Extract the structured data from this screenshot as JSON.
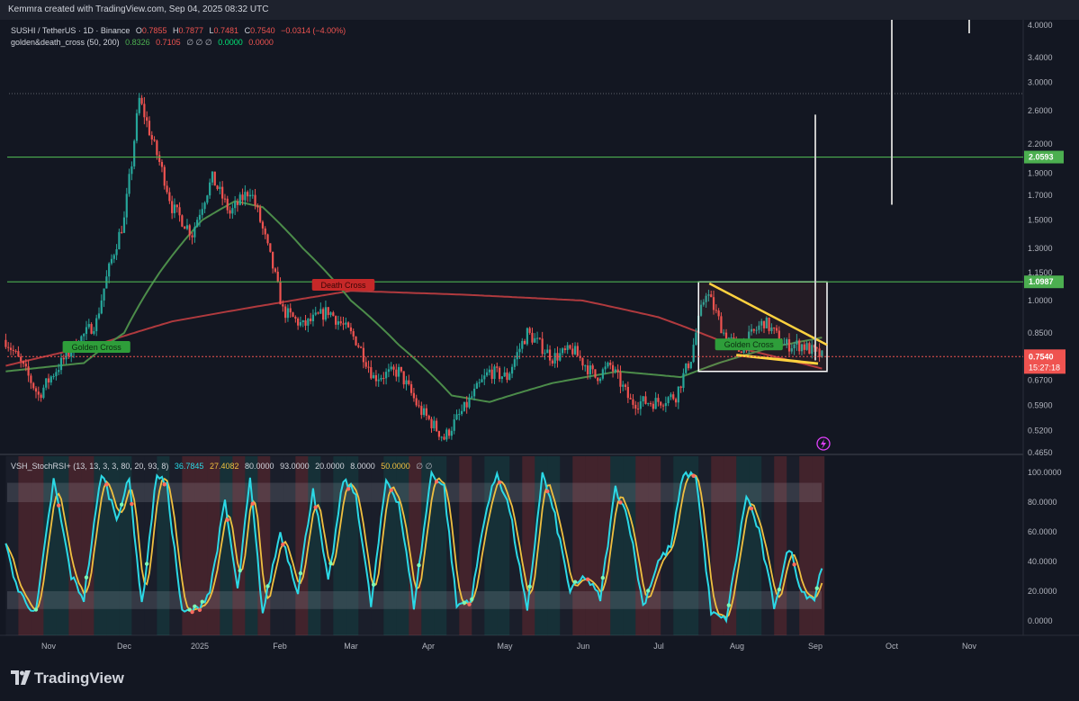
{
  "header": {
    "attribution": "Kemmra created with TradingView.com, Sep 04, 2025 08:32 UTC"
  },
  "legend": {
    "symbol": "SUSHI / TetherUS · 1D · Binance",
    "o_label": "O",
    "o_value": "0.7855",
    "h_label": "H",
    "h_value": "0.7877",
    "l_label": "L",
    "l_value": "0.7481",
    "c_label": "C",
    "c_value": "0.7540",
    "change": "−0.0314 (−4.00%)",
    "indicator_name": "golden&death_cross (50, 200)",
    "ind_v1": "0.8326",
    "ind_v2": "0.7105",
    "ind_nulls": "∅ ∅ ∅",
    "ind_v3": "0.0000",
    "ind_v4": "0.0000"
  },
  "rsi_legend": {
    "name": "VSH_StochRSI+ (13, 13, 3, 3, 80, 20, 93, 8)",
    "k": "36.7845",
    "d": "27.4082",
    "v1": "80.0000",
    "v2": "93.0000",
    "v3": "20.0000",
    "v4": "8.0000",
    "v5": "50.0000",
    "nulls": "∅ ∅"
  },
  "footer": {
    "brand": "TradingView"
  },
  "colors": {
    "bg": "#131722",
    "up": "#26a69a",
    "down": "#ef5350",
    "ma50": "#4c8c4a",
    "ma200": "#b03a3e",
    "hline": "#4caf50",
    "trend": "#ffd23f",
    "k_line": "#2bd9e6",
    "d_line": "#f0c040"
  },
  "chart_data": [
    {
      "type": "candlestick",
      "title": "SUSHI / TetherUS · 1D · Binance",
      "scale": "log",
      "ylim": [
        0.465,
        4.0
      ],
      "y_ticks": [
        "4.0000",
        "3.4000",
        "3.0000",
        "2.6000",
        "2.2000",
        "1.9000",
        "1.7000",
        "1.5000",
        "1.3000",
        "1.1500",
        "1.0000",
        "0.8500",
        "0.6700",
        "0.5900",
        "0.5200",
        "0.4650"
      ],
      "x_ticks": [
        "Nov",
        "Dec",
        "2025",
        "Feb",
        "Mar",
        "Apr",
        "May",
        "Jun",
        "Jul",
        "Aug",
        "Sep",
        "Oct",
        "Nov"
      ],
      "price_anchors": [
        [
          "Oct 15",
          0.82
        ],
        [
          "Oct 28",
          0.62
        ],
        [
          "Nov 10",
          0.78
        ],
        [
          "Nov 20",
          0.9
        ],
        [
          "Dec 1",
          1.5
        ],
        [
          "Dec 4",
          2.0
        ],
        [
          "Dec 7",
          2.75
        ],
        [
          "Dec 12",
          2.25
        ],
        [
          "Dec 20",
          1.6
        ],
        [
          "Dec 28",
          1.4
        ],
        [
          "Jan 5",
          1.85
        ],
        [
          "Jan 12",
          1.55
        ],
        [
          "Jan 20",
          1.75
        ],
        [
          "Jan 27",
          1.3
        ],
        [
          "Feb 2",
          0.95
        ],
        [
          "Feb 10",
          0.88
        ],
        [
          "Feb 20",
          0.95
        ],
        [
          "Mar 3",
          0.82
        ],
        [
          "Mar 10",
          0.68
        ],
        [
          "Mar 20",
          0.7
        ],
        [
          "Mar 28",
          0.58
        ],
        [
          "Apr 7",
          0.5
        ],
        [
          "Apr 15",
          0.58
        ],
        [
          "Apr 25",
          0.7
        ],
        [
          "May 2",
          0.68
        ],
        [
          "May 10",
          0.85
        ],
        [
          "May 20",
          0.75
        ],
        [
          "May 28",
          0.78
        ],
        [
          "Jun 6",
          0.68
        ],
        [
          "Jun 12",
          0.72
        ],
        [
          "Jun 20",
          0.6
        ],
        [
          "Jun 30",
          0.6
        ],
        [
          "Jul 8",
          0.62
        ],
        [
          "Jul 14",
          0.75
        ],
        [
          "Jul 20",
          1.05
        ],
        [
          "Jul 27",
          0.85
        ],
        [
          "Aug 2",
          0.78
        ],
        [
          "Aug 12",
          0.9
        ],
        [
          "Aug 20",
          0.8
        ],
        [
          "Aug 27",
          0.8
        ],
        [
          "Sep 4",
          0.754
        ]
      ],
      "ma50_anchors": [
        [
          "Oct 15",
          0.7
        ],
        [
          "Nov 15",
          0.73
        ],
        [
          "Dec 1",
          0.85
        ],
        [
          "Dec 15",
          1.15
        ],
        [
          "Jan 1",
          1.5
        ],
        [
          "Jan 14",
          1.65
        ],
        [
          "Jan 25",
          1.6
        ],
        [
          "Feb 10",
          1.3
        ],
        [
          "Mar 1",
          1.0
        ],
        [
          "Mar 20",
          0.8
        ],
        [
          "Apr 10",
          0.62
        ],
        [
          "Apr 25",
          0.6
        ],
        [
          "May 20",
          0.66
        ],
        [
          "Jun 15",
          0.7
        ],
        [
          "Jul 10",
          0.68
        ],
        [
          "Jul 25",
          0.73
        ],
        [
          "Aug 15",
          0.79
        ],
        [
          "Sep 4",
          0.83
        ]
      ],
      "ma200_anchors": [
        [
          "Oct 15",
          0.72
        ],
        [
          "Nov 20",
          0.8
        ],
        [
          "Dec 20",
          0.9
        ],
        [
          "Feb 1",
          0.99
        ],
        [
          "Mar 1",
          1.05
        ],
        [
          "Apr 15",
          1.03
        ],
        [
          "Jun 1",
          1.0
        ],
        [
          "Jul 1",
          0.92
        ],
        [
          "Aug 1",
          0.79
        ],
        [
          "Sep 4",
          0.71
        ]
      ],
      "horizontal_levels": [
        {
          "value": 2.0593,
          "label": "2.0593"
        },
        {
          "value": 1.0987,
          "label": "1.0987"
        }
      ],
      "last_price": {
        "value": 0.754,
        "label": "0.7540",
        "countdown": "15:27:18"
      },
      "annotations": [
        {
          "text": "Golden Cross",
          "date": "Nov 20",
          "value": 0.79
        },
        {
          "text": "Death Cross",
          "date": "Feb 26",
          "value": 1.08
        },
        {
          "text": "Golden Cross",
          "date": "Aug 6",
          "value": 0.8
        }
      ],
      "rectangle": {
        "from": "Jul 17",
        "to": "Sep 6",
        "top": 1.0987,
        "bottom": 0.7
      }
    },
    {
      "type": "line",
      "title": "VSH_StochRSI+ (13, 13, 3, 3, 80, 20, 93, 8)",
      "ylim": [
        0,
        100
      ],
      "y_ticks": [
        "100.0000",
        "80.0000",
        "60.0000",
        "40.0000",
        "20.0000",
        "0.0000"
      ],
      "bands": [
        [
          80,
          93
        ],
        [
          8,
          20
        ]
      ],
      "series": [
        {
          "name": "K",
          "last": 36.7845
        },
        {
          "name": "D",
          "last": 27.4082
        }
      ],
      "k_anchors": [
        [
          "Oct 15",
          50
        ],
        [
          "Oct 20",
          20
        ],
        [
          "Oct 27",
          5
        ],
        [
          "Nov 3",
          95
        ],
        [
          "Nov 10",
          30
        ],
        [
          "Nov 15",
          15
        ],
        [
          "Nov 22",
          100
        ],
        [
          "Nov 28",
          70
        ],
        [
          "Dec 3",
          95
        ],
        [
          "Dec 8",
          10
        ],
        [
          "Dec 14",
          100
        ],
        [
          "Dec 18",
          90
        ],
        [
          "Dec 24",
          5
        ],
        [
          "Dec 30",
          8
        ],
        [
          "Jan 4",
          20
        ],
        [
          "Jan 10",
          80
        ],
        [
          "Jan 15",
          20
        ],
        [
          "Jan 20",
          95
        ],
        [
          "Jan 25",
          5
        ],
        [
          "Feb 1",
          60
        ],
        [
          "Feb 8",
          20
        ],
        [
          "Feb 14",
          90
        ],
        [
          "Feb 20",
          25
        ],
        [
          "Feb 26",
          95
        ],
        [
          "Mar 3",
          85
        ],
        [
          "Mar 9",
          10
        ],
        [
          "Mar 15",
          95
        ],
        [
          "Mar 20",
          80
        ],
        [
          "Mar 26",
          10
        ],
        [
          "Apr 2",
          100
        ],
        [
          "Apr 7",
          90
        ],
        [
          "Apr 12",
          10
        ],
        [
          "Apr 18",
          15
        ],
        [
          "Apr 23",
          70
        ],
        [
          "Apr 28",
          100
        ],
        [
          "May 3",
          75
        ],
        [
          "May 10",
          5
        ],
        [
          "May 16",
          100
        ],
        [
          "May 21",
          70
        ],
        [
          "May 27",
          20
        ],
        [
          "Jun 2",
          30
        ],
        [
          "Jun 8",
          15
        ],
        [
          "Jun 14",
          90
        ],
        [
          "Jun 19",
          70
        ],
        [
          "Jun 25",
          10
        ],
        [
          "Jul 1",
          40
        ],
        [
          "Jul 6",
          50
        ],
        [
          "Jul 11",
          100
        ],
        [
          "Jul 16",
          98
        ],
        [
          "Jul 22",
          5
        ],
        [
          "Jul 28",
          0
        ],
        [
          "Aug 5",
          85
        ],
        [
          "Aug 10",
          60
        ],
        [
          "Aug 16",
          10
        ],
        [
          "Aug 22",
          50
        ],
        [
          "Aug 27",
          20
        ],
        [
          "Sep 1",
          15
        ],
        [
          "Sep 4",
          37
        ]
      ]
    }
  ]
}
